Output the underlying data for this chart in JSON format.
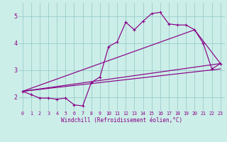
{
  "xlabel": "Windchill (Refroidissement éolien,°C)",
  "background_color": "#cceee8",
  "line_color": "#880088",
  "grid_color": "#99cccc",
  "xlim": [
    -0.5,
    23.5
  ],
  "ylim": [
    1.5,
    5.5
  ],
  "xticks": [
    0,
    1,
    2,
    3,
    4,
    5,
    6,
    7,
    8,
    9,
    10,
    11,
    12,
    13,
    14,
    15,
    16,
    17,
    18,
    19,
    20,
    21,
    22,
    23
  ],
  "yticks": [
    2,
    3,
    4,
    5
  ],
  "series1_x": [
    0,
    1,
    2,
    3,
    4,
    5,
    6,
    7,
    8,
    9,
    10,
    11,
    12,
    13,
    14,
    15,
    16,
    17,
    18,
    19,
    20,
    21,
    22,
    23
  ],
  "series1_y": [
    2.22,
    2.1,
    1.97,
    1.97,
    1.93,
    1.97,
    1.72,
    1.68,
    2.55,
    2.75,
    3.88,
    4.05,
    4.78,
    4.5,
    4.82,
    5.1,
    5.15,
    4.72,
    4.68,
    4.68,
    4.5,
    4.0,
    3.05,
    3.25
  ],
  "line2_x": [
    0,
    23
  ],
  "line2_y": [
    2.22,
    3.25
  ],
  "line3_x": [
    0,
    20,
    23
  ],
  "line3_y": [
    2.22,
    4.5,
    3.25
  ],
  "line4_x": [
    0,
    23
  ],
  "line4_y": [
    2.22,
    3.05
  ]
}
